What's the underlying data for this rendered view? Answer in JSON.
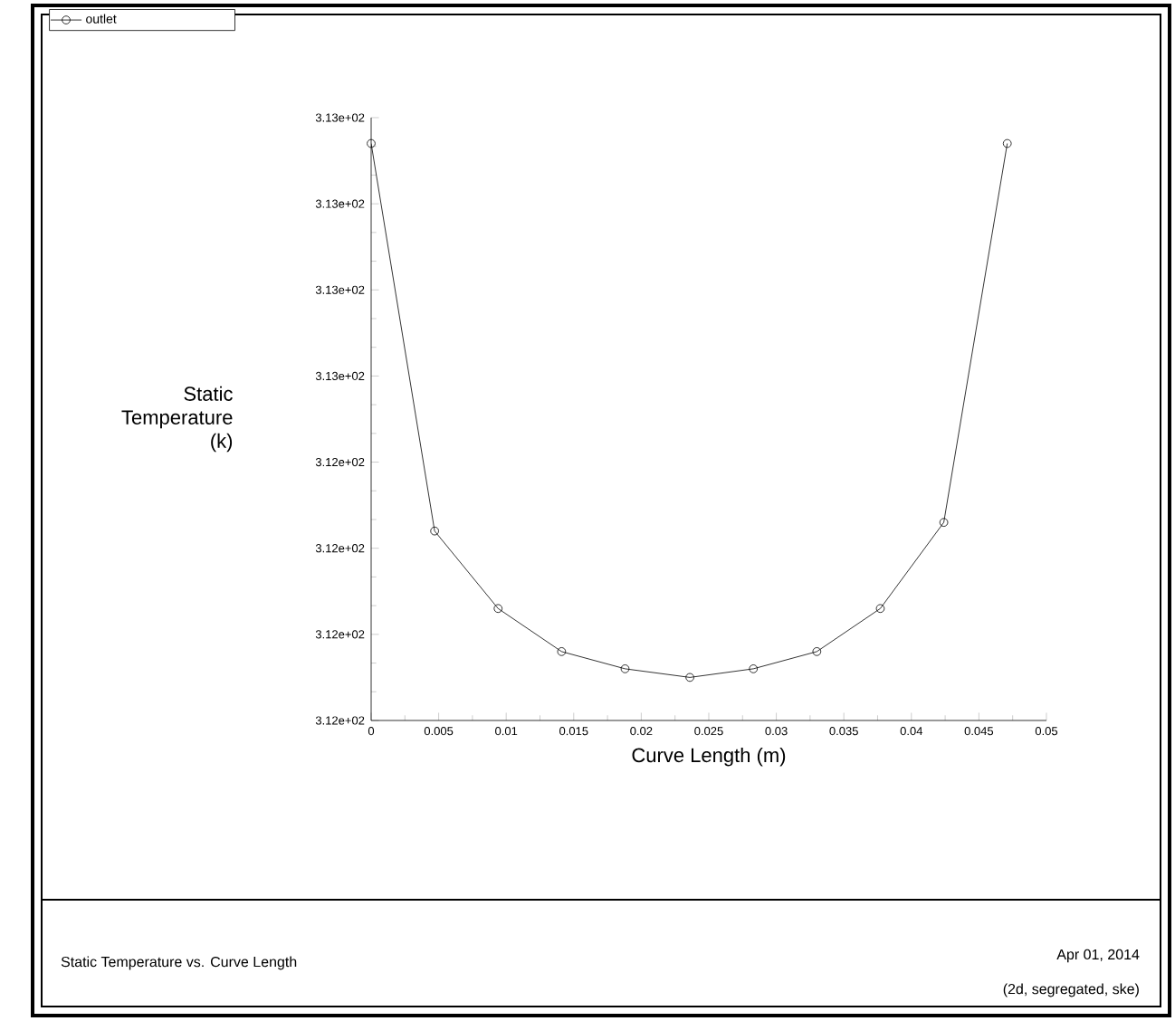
{
  "chart_data": {
    "type": "line",
    "title": "Static Temperature vs. Curve Length",
    "xlabel": "Curve Length (m)",
    "ylabel": "Static Temperature (k)",
    "annotations": [
      "Apr 01, 2014",
      "(2d, segregated, ske)"
    ],
    "x": [
      0,
      0.0047,
      0.0094,
      0.0141,
      0.0188,
      0.0236,
      0.0283,
      0.033,
      0.0377,
      0.0424,
      0.0471
    ],
    "series": [
      {
        "name": "outlet",
        "color": "#000000",
        "values": [
          312.82,
          312.37,
          312.28,
          312.23,
          312.21,
          312.2,
          312.21,
          312.23,
          312.28,
          312.38,
          312.82
        ]
      }
    ],
    "xlim": [
      0,
      0.05
    ],
    "xticks": [
      0,
      0.005,
      0.01,
      0.015,
      0.02,
      0.025,
      0.03,
      0.035,
      0.04,
      0.045,
      0.05
    ],
    "ylim": [
      312.15,
      312.85
    ],
    "yticks": [
      {
        "value": 312.15,
        "label": "3.12e+02"
      },
      {
        "value": 312.25,
        "label": "3.12e+02"
      },
      {
        "value": 312.35,
        "label": "3.12e+02"
      },
      {
        "value": 312.45,
        "label": "3.12e+02"
      },
      {
        "value": 312.55,
        "label": "3.13e+02"
      },
      {
        "value": 312.65,
        "label": "3.13e+02"
      },
      {
        "value": 312.75,
        "label": "3.13e+02"
      },
      {
        "value": 312.85,
        "label": "3.13e+02"
      }
    ],
    "grid": false,
    "legend": "top left",
    "marker": "circle",
    "line_style": "solid"
  }
}
